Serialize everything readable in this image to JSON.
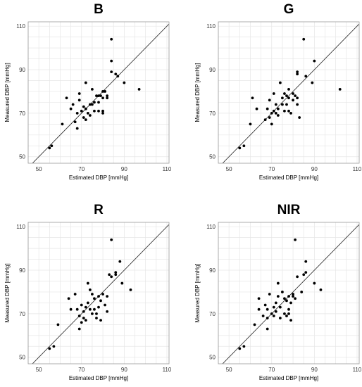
{
  "chart_data": [
    {
      "type": "scatter",
      "title": "B",
      "xlabel": "Estimated DBP [mmHg]",
      "ylabel": "Measured DBP [mmHg]",
      "xlim": [
        45,
        111
      ],
      "ylim": [
        47,
        112
      ],
      "xticks": [
        50,
        70,
        90,
        110
      ],
      "yticks": [
        50,
        70,
        90,
        110
      ],
      "grid": true,
      "identity_line": true,
      "points": [
        [
          55,
          54
        ],
        [
          56,
          55
        ],
        [
          61,
          65
        ],
        [
          63,
          77
        ],
        [
          65,
          72
        ],
        [
          66,
          74
        ],
        [
          67,
          66
        ],
        [
          68,
          63
        ],
        [
          68,
          70
        ],
        [
          69,
          76
        ],
        [
          69,
          79
        ],
        [
          70,
          71
        ],
        [
          71,
          68
        ],
        [
          71,
          73
        ],
        [
          72,
          67
        ],
        [
          72,
          72
        ],
        [
          72,
          84
        ],
        [
          73,
          70
        ],
        [
          74,
          74
        ],
        [
          74,
          69
        ],
        [
          75,
          74
        ],
        [
          75,
          81
        ],
        [
          76,
          75
        ],
        [
          76,
          71
        ],
        [
          77,
          78
        ],
        [
          78,
          78
        ],
        [
          78,
          75
        ],
        [
          78,
          71
        ],
        [
          79,
          78
        ],
        [
          80,
          80
        ],
        [
          80,
          77
        ],
        [
          80,
          71
        ],
        [
          80,
          70
        ],
        [
          81,
          80
        ],
        [
          82,
          78
        ],
        [
          82,
          77
        ],
        [
          84,
          104
        ],
        [
          84,
          94
        ],
        [
          84,
          89
        ],
        [
          86,
          88
        ],
        [
          87,
          87
        ],
        [
          90,
          84
        ],
        [
          97,
          81
        ]
      ]
    },
    {
      "type": "scatter",
      "title": "G",
      "xlabel": "Estimated DBP [mmHg]",
      "ylabel": "Measured DBP [mmHg]",
      "xlim": [
        45,
        111
      ],
      "ylim": [
        47,
        112
      ],
      "xticks": [
        50,
        70,
        90,
        110
      ],
      "yticks": [
        50,
        70,
        90,
        110
      ],
      "grid": true,
      "identity_line": true,
      "points": [
        [
          55,
          54
        ],
        [
          57,
          55
        ],
        [
          60,
          65
        ],
        [
          61,
          77
        ],
        [
          63,
          72
        ],
        [
          67,
          67
        ],
        [
          68,
          72
        ],
        [
          69,
          68
        ],
        [
          69,
          76
        ],
        [
          70,
          65
        ],
        [
          70,
          70
        ],
        [
          71,
          79
        ],
        [
          71,
          71
        ],
        [
          72,
          74
        ],
        [
          72,
          70
        ],
        [
          73,
          72
        ],
        [
          73,
          69
        ],
        [
          74,
          84
        ],
        [
          75,
          77
        ],
        [
          75,
          74
        ],
        [
          76,
          79
        ],
        [
          76,
          71
        ],
        [
          77,
          78
        ],
        [
          77,
          74
        ],
        [
          78,
          81
        ],
        [
          78,
          77
        ],
        [
          78,
          71
        ],
        [
          79,
          70
        ],
        [
          80,
          79
        ],
        [
          80,
          76
        ],
        [
          81,
          78
        ],
        [
          82,
          77
        ],
        [
          82,
          74
        ],
        [
          82,
          89
        ],
        [
          82,
          88
        ],
        [
          83,
          68
        ],
        [
          85,
          104
        ],
        [
          86,
          87
        ],
        [
          89,
          84
        ],
        [
          90,
          94
        ],
        [
          102,
          81
        ]
      ]
    },
    {
      "type": "scatter",
      "title": "R",
      "xlabel": "Estimated DBP [mmHg]",
      "ylabel": "Measured DBP [mmHg]",
      "xlim": [
        45,
        111
      ],
      "ylim": [
        47,
        112
      ],
      "xticks": [
        50,
        70,
        90,
        110
      ],
      "yticks": [
        50,
        70,
        90,
        110
      ],
      "grid": true,
      "identity_line": true,
      "points": [
        [
          55,
          54
        ],
        [
          57,
          55
        ],
        [
          59,
          65
        ],
        [
          64,
          77
        ],
        [
          65,
          72
        ],
        [
          67,
          79
        ],
        [
          68,
          72
        ],
        [
          69,
          63
        ],
        [
          69,
          69
        ],
        [
          70,
          66
        ],
        [
          70,
          74
        ],
        [
          71,
          68
        ],
        [
          71,
          71
        ],
        [
          72,
          73
        ],
        [
          72,
          67
        ],
        [
          73,
          84
        ],
        [
          73,
          75
        ],
        [
          74,
          81
        ],
        [
          74,
          72
        ],
        [
          75,
          70
        ],
        [
          75,
          79
        ],
        [
          76,
          77
        ],
        [
          76,
          72
        ],
        [
          77,
          70
        ],
        [
          77,
          68
        ],
        [
          78,
          78
        ],
        [
          78,
          73
        ],
        [
          79,
          76
        ],
        [
          79,
          67
        ],
        [
          80,
          79
        ],
        [
          81,
          74
        ],
        [
          82,
          71
        ],
        [
          82,
          78
        ],
        [
          83,
          88
        ],
        [
          84,
          104
        ],
        [
          84,
          87
        ],
        [
          86,
          89
        ],
        [
          86,
          88
        ],
        [
          88,
          94
        ],
        [
          89,
          84
        ],
        [
          93,
          81
        ]
      ]
    },
    {
      "type": "scatter",
      "title": "NIR",
      "xlabel": "Estimated DBP [mmHg]",
      "ylabel": "Measured DBP [mmHg]",
      "xlim": [
        45,
        111
      ],
      "ylim": [
        47,
        112
      ],
      "xticks": [
        50,
        70,
        90,
        110
      ],
      "yticks": [
        50,
        70,
        90,
        110
      ],
      "grid": true,
      "identity_line": true,
      "points": [
        [
          55,
          54
        ],
        [
          57,
          55
        ],
        [
          62,
          65
        ],
        [
          64,
          77
        ],
        [
          64,
          72
        ],
        [
          66,
          69
        ],
        [
          67,
          74
        ],
        [
          68,
          63
        ],
        [
          68,
          68
        ],
        [
          68,
          72
        ],
        [
          69,
          79
        ],
        [
          70,
          70
        ],
        [
          71,
          73
        ],
        [
          71,
          69
        ],
        [
          72,
          71
        ],
        [
          72,
          75
        ],
        [
          73,
          84
        ],
        [
          73,
          78
        ],
        [
          74,
          73
        ],
        [
          74,
          68
        ],
        [
          75,
          80
        ],
        [
          76,
          70
        ],
        [
          76,
          77
        ],
        [
          77,
          76
        ],
        [
          77,
          69
        ],
        [
          78,
          72
        ],
        [
          78,
          70
        ],
        [
          78,
          78
        ],
        [
          79,
          75
        ],
        [
          79,
          67
        ],
        [
          80,
          78
        ],
        [
          80,
          79
        ],
        [
          81,
          104
        ],
        [
          81,
          77
        ],
        [
          82,
          87
        ],
        [
          84,
          80
        ],
        [
          85,
          88
        ],
        [
          86,
          89
        ],
        [
          86,
          94
        ],
        [
          90,
          84
        ],
        [
          93,
          81
        ]
      ]
    }
  ]
}
